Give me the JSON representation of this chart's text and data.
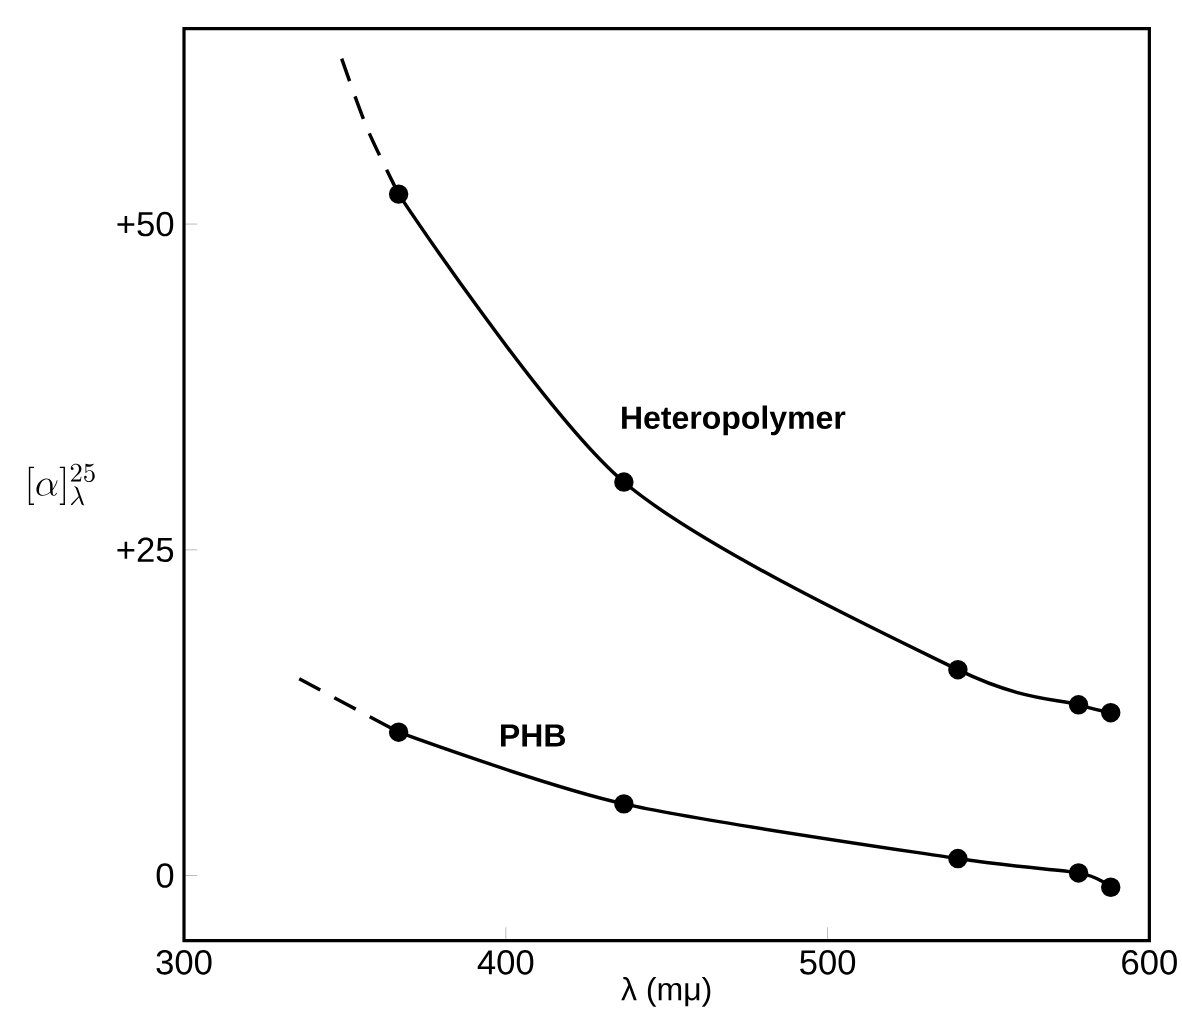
{
  "chart_data": {
    "type": "line",
    "xlabel": "λ (mμ)",
    "ylabel": "[\\alpha]^{25}_{\\lambda}",
    "xlim": [
      300,
      600
    ],
    "ylim": [
      -5,
      65
    ],
    "xticks": [
      300,
      400,
      500,
      600
    ],
    "yticks": [
      {
        "value": 0,
        "label": "0"
      },
      {
        "value": 25,
        "label": "+25"
      },
      {
        "value": 50,
        "label": "+50"
      }
    ],
    "grid": false,
    "legend": false,
    "series": [
      {
        "name": "Heteropolymer",
        "color": "#000000",
        "marker": "circle",
        "line_style": "solid",
        "x": [
          366.7,
          436.7,
          540.5,
          578,
          588
        ],
        "values": [
          52.3,
          30.2,
          15.8,
          13.1,
          12.5
        ]
      },
      {
        "color": "#000000",
        "marker": "none",
        "line_style": "dashed",
        "x": [
          349,
          357,
          366.7
        ],
        "values": [
          62.7,
          57.3,
          52.3
        ]
      },
      {
        "name": "PHB",
        "color": "#000000",
        "marker": "circle",
        "line_style": "solid",
        "x": [
          366.7,
          436.7,
          540.5,
          578,
          588
        ],
        "values": [
          11.0,
          5.5,
          1.3,
          0.2,
          -0.9
        ]
      },
      {
        "color": "#000000",
        "marker": "none",
        "line_style": "dashed",
        "x": [
          335.8,
          366.7
        ],
        "values": [
          15.1,
          11.0
        ]
      }
    ]
  }
}
